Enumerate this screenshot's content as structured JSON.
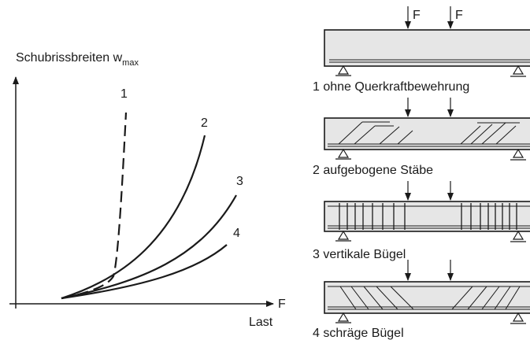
{
  "graph": {
    "ylabel_main": "Schubrissbreiten w",
    "ylabel_sub": "max",
    "xaxis_symbol": "F",
    "xlabel": "Last",
    "curve_labels": [
      "1",
      "2",
      "3",
      "4"
    ]
  },
  "beams": {
    "load_label": "F",
    "captions": [
      "1 ohne Querkraftbewehrung",
      "2 aufgebogene Stäbe",
      "3 vertikale Bügel",
      "4 schräge Bügel"
    ]
  },
  "colors": {
    "line": "#1a1a1a",
    "beam_fill": "#e6e6e6"
  }
}
